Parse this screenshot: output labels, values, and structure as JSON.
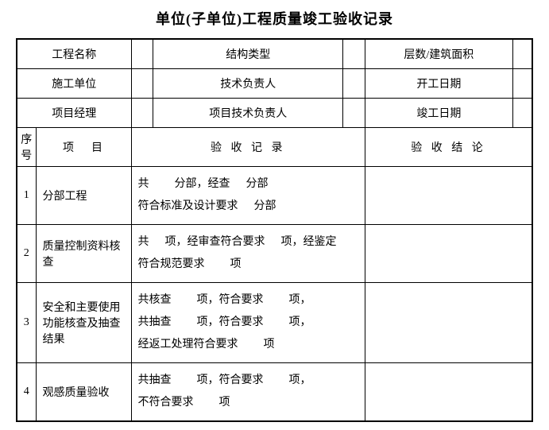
{
  "title": "单位(子单位)工程质量竣工验收记录",
  "header": {
    "r1c1": "工程名称",
    "r1c2": "结构类型",
    "r1c3": "层数/建筑面积",
    "r2c1": "施工单位",
    "r2c2": "技术负责人",
    "r2c3": "开工日期",
    "r3c1": "项目经理",
    "r3c2": "项目技术负责人",
    "r3c3": "竣工日期"
  },
  "cols": {
    "seq": "序号",
    "item": "项　目",
    "record": "验 收 记 录",
    "conclusion": "验 收 结 论"
  },
  "rows": {
    "r1": {
      "seq": "1",
      "item": "分部工程",
      "record_l1a": "共",
      "record_l1b": "分部，经查",
      "record_l1c": "分部",
      "record_l2a": "符合标准及设计要求",
      "record_l2b": "分部"
    },
    "r2": {
      "seq": "2",
      "item": "质量控制资料核查",
      "record_l1a": "共",
      "record_l1b": "项，经审查符合要求",
      "record_l1c": "项，经鉴定",
      "record_l2a": "符合规范要求",
      "record_l2b": "项"
    },
    "r3": {
      "seq": "3",
      "item": "安全和主要使用功能核查及抽查结果",
      "record_l1a": "共核查",
      "record_l1b": "项，符合要求",
      "record_l1c": "项，",
      "record_l2a": "共抽查",
      "record_l2b": "项，符合要求",
      "record_l2c": "项，",
      "record_l3a": "经返工处理符合要求",
      "record_l3b": "项"
    },
    "r4": {
      "seq": "4",
      "item": "观感质量验收",
      "record_l1a": "共抽查",
      "record_l1b": "项，符合要求",
      "record_l1c": "项，",
      "record_l2a": "不符合要求",
      "record_l2b": "项"
    }
  }
}
